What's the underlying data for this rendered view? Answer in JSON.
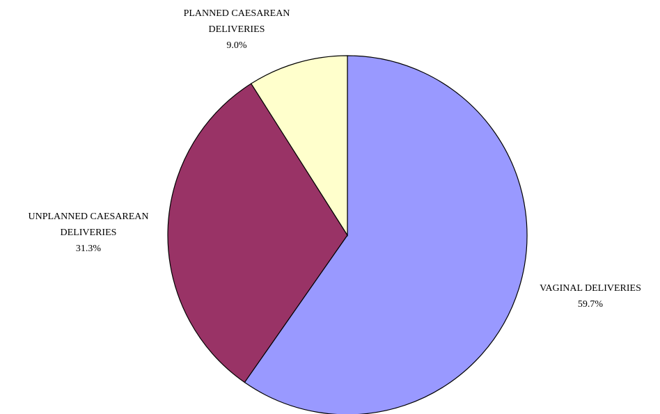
{
  "chart_data": {
    "type": "pie",
    "categories": [
      "VAGINAL DELIVERIES",
      "UNPLANNED CAESAREAN DELIVERIES",
      "PLANNED CAESAREAN DELIVERIES"
    ],
    "values": [
      59.7,
      31.3,
      9.0
    ],
    "value_labels": [
      "59.7%",
      "31.3%",
      "9.0%"
    ],
    "colors": [
      "#9999ff",
      "#993366",
      "#ffffcc"
    ]
  }
}
